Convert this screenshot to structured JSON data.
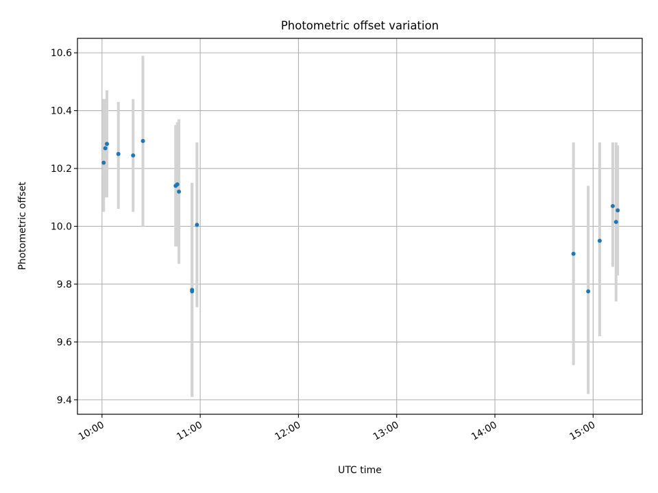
{
  "chart_data": {
    "type": "scatter",
    "title": "Photometric offset variation",
    "xlabel": "UTC time",
    "ylabel": "Photometric offset",
    "x_ticks": [
      "10:00",
      "11:00",
      "12:00",
      "13:00",
      "14:00",
      "15:00"
    ],
    "y_ticks": [
      "9.4",
      "9.6",
      "9.8",
      "10.0",
      "10.2",
      "10.4",
      "10.6"
    ],
    "xlim": [
      "09:45",
      "15:30"
    ],
    "ylim": [
      9.35,
      10.65
    ],
    "grid": true,
    "colors": {
      "marker": "#1f77b4",
      "errorbar": "#d3d3d3"
    },
    "series": [
      {
        "points": [
          {
            "x": "10:01",
            "y": 10.22,
            "ylow": 10.05,
            "yhigh": 10.44
          },
          {
            "x": "10:02",
            "y": 10.27,
            "ylow": 10.1,
            "yhigh": 10.44
          },
          {
            "x": "10:03",
            "y": 10.285,
            "ylow": 10.1,
            "yhigh": 10.47
          },
          {
            "x": "10:10",
            "y": 10.25,
            "ylow": 10.06,
            "yhigh": 10.43
          },
          {
            "x": "10:19",
            "y": 10.245,
            "ylow": 10.05,
            "yhigh": 10.44
          },
          {
            "x": "10:25",
            "y": 10.295,
            "ylow": 10.0,
            "yhigh": 10.59
          },
          {
            "x": "10:45",
            "y": 10.14,
            "ylow": 9.93,
            "yhigh": 10.35
          },
          {
            "x": "10:46",
            "y": 10.145,
            "ylow": 9.93,
            "yhigh": 10.36
          },
          {
            "x": "10:47",
            "y": 10.12,
            "ylow": 9.87,
            "yhigh": 10.37
          },
          {
            "x": "10:55",
            "y": 9.78,
            "ylow": 9.41,
            "yhigh": 10.15
          },
          {
            "x": "10:55",
            "y": 9.775,
            "ylow": 9.41,
            "yhigh": 10.15
          },
          {
            "x": "10:58",
            "y": 10.005,
            "ylow": 9.72,
            "yhigh": 10.29
          },
          {
            "x": "14:48",
            "y": 9.905,
            "ylow": 9.52,
            "yhigh": 10.29
          },
          {
            "x": "14:57",
            "y": 9.775,
            "ylow": 9.42,
            "yhigh": 10.14
          },
          {
            "x": "15:04",
            "y": 9.95,
            "ylow": 9.62,
            "yhigh": 10.29
          },
          {
            "x": "15:12",
            "y": 10.07,
            "ylow": 9.86,
            "yhigh": 10.29
          },
          {
            "x": "15:14",
            "y": 10.015,
            "ylow": 9.74,
            "yhigh": 10.29
          },
          {
            "x": "15:15",
            "y": 10.055,
            "ylow": 9.83,
            "yhigh": 10.28
          }
        ]
      }
    ]
  }
}
